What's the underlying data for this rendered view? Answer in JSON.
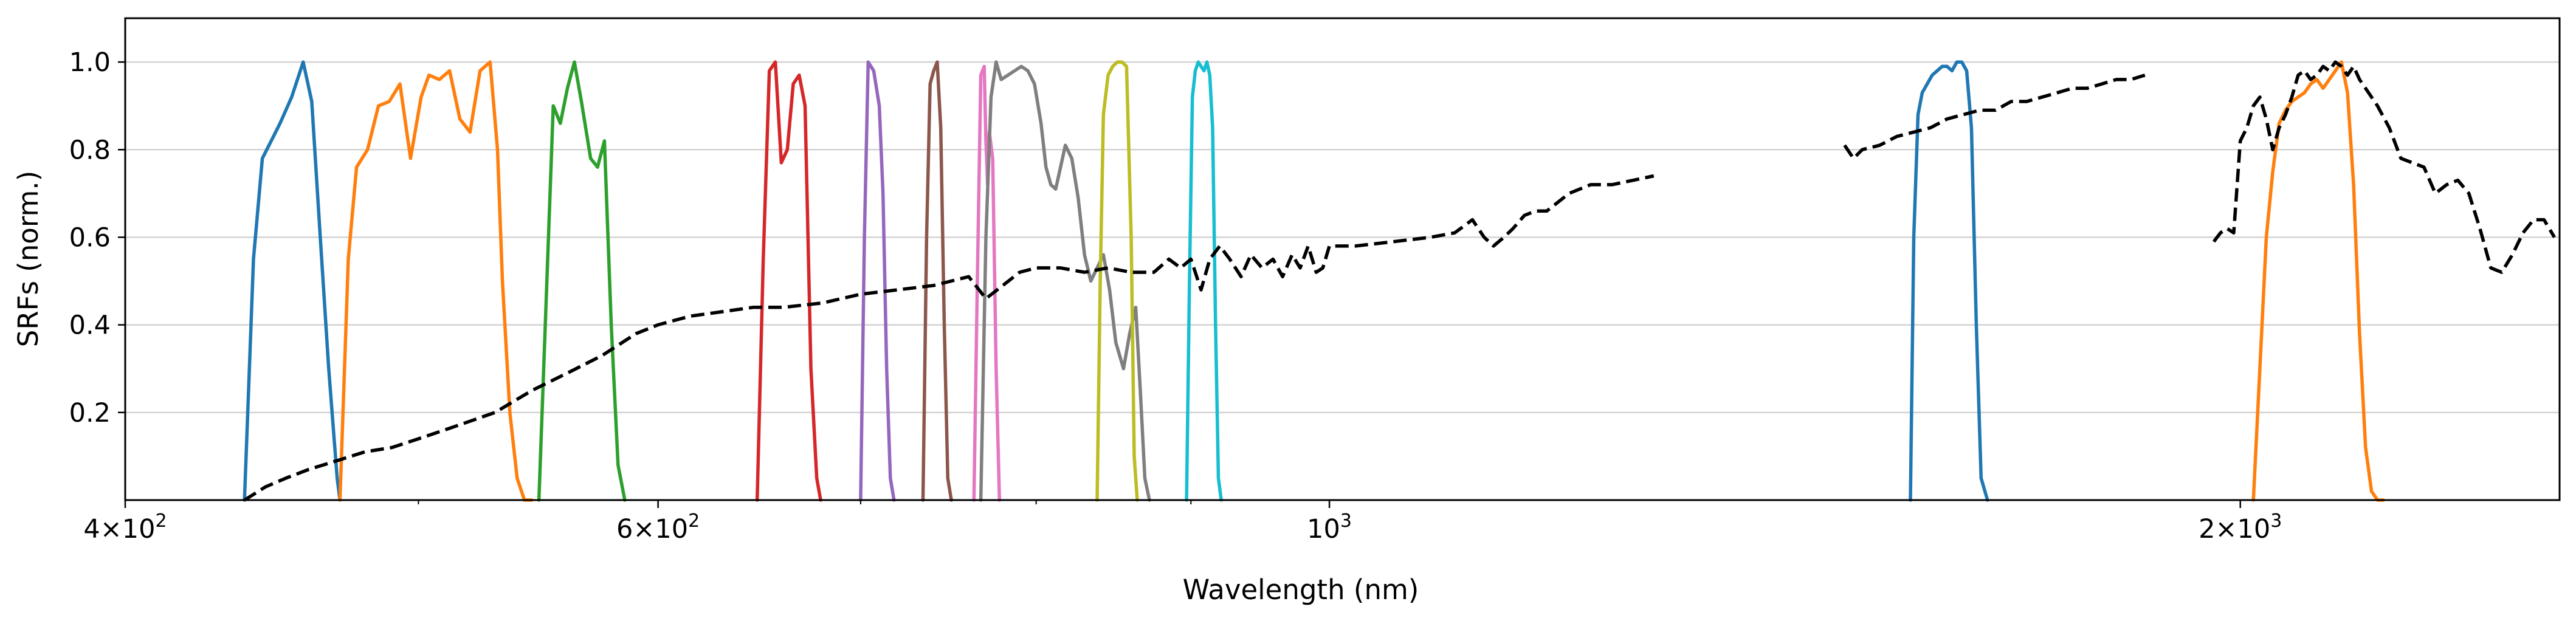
{
  "chart_data": {
    "type": "line",
    "xlabel": "Wavelength (nm)",
    "ylabel": "SRFs (norm.)",
    "x_scale": "log",
    "xlim": [
      400,
      2550
    ],
    "ylim": [
      0,
      1.1
    ],
    "grid": "y-major",
    "x_tick_labels": [
      {
        "value": 400,
        "base": "4×10",
        "exp": "2"
      },
      {
        "value": 600,
        "base": "6×10",
        "exp": "2"
      },
      {
        "value": 1000,
        "base": "10",
        "exp": "3"
      },
      {
        "value": 2000,
        "base": "2×10",
        "exp": "3"
      }
    ],
    "x_minor_ticks": [
      500,
      700,
      800,
      900,
      3000
    ],
    "y_ticks": [
      0.2,
      0.4,
      0.6,
      0.8,
      1.0
    ],
    "y_tick_labels": [
      "0.2",
      "0.4",
      "0.6",
      "0.8",
      "1.0"
    ],
    "series": [
      {
        "color": "#1f77b4",
        "dash": false,
        "x": [
          438,
          441,
          444,
          447,
          450,
          454,
          458,
          461,
          464,
          467,
          470,
          471
        ],
        "y": [
          0.0,
          0.55,
          0.78,
          0.82,
          0.86,
          0.92,
          1.0,
          0.91,
          0.6,
          0.3,
          0.05,
          0.0
        ]
      },
      {
        "color": "#ff7f0e",
        "dash": false,
        "x": [
          471,
          474,
          477,
          481,
          485,
          489,
          493,
          497,
          501,
          504,
          508,
          512,
          516,
          520,
          524,
          528,
          531,
          533,
          536,
          539,
          542,
          545
        ],
        "y": [
          0.0,
          0.55,
          0.76,
          0.8,
          0.9,
          0.91,
          0.95,
          0.78,
          0.92,
          0.97,
          0.96,
          0.98,
          0.87,
          0.84,
          0.98,
          1.0,
          0.8,
          0.5,
          0.2,
          0.05,
          0.0,
          0.0
        ]
      },
      {
        "color": "#2ca02c",
        "dash": false,
        "x": [
          548,
          551,
          554,
          557,
          560,
          563,
          566,
          570,
          573,
          576,
          579,
          582,
          585
        ],
        "y": [
          0.0,
          0.45,
          0.9,
          0.86,
          0.94,
          1.0,
          0.91,
          0.78,
          0.76,
          0.82,
          0.4,
          0.08,
          0.0
        ]
      },
      {
        "color": "#d62728",
        "dash": false,
        "x": [
          647,
          650,
          653,
          656,
          659,
          662,
          665,
          668,
          671,
          674,
          677,
          679
        ],
        "y": [
          0.0,
          0.55,
          0.98,
          1.0,
          0.77,
          0.8,
          0.95,
          0.97,
          0.9,
          0.3,
          0.05,
          0.0
        ]
      },
      {
        "color": "#9467bd",
        "dash": false,
        "x": [
          700,
          702,
          704,
          707,
          710,
          712,
          714,
          716,
          718
        ],
        "y": [
          0.0,
          0.6,
          1.0,
          0.98,
          0.9,
          0.7,
          0.3,
          0.05,
          0.0
        ]
      },
      {
        "color": "#8c564b",
        "dash": false,
        "x": [
          734,
          736,
          738,
          740,
          742,
          744,
          746,
          748,
          750
        ],
        "y": [
          0.0,
          0.6,
          0.95,
          0.98,
          1.0,
          0.85,
          0.4,
          0.05,
          0.0
        ]
      },
      {
        "color": "#e377c2",
        "dash": false,
        "x": [
          763,
          765,
          767,
          769,
          770,
          771,
          772,
          774,
          776,
          778
        ],
        "y": [
          0.0,
          0.5,
          0.97,
          0.99,
          0.82,
          0.72,
          0.84,
          0.78,
          0.3,
          0.0
        ]
      },
      {
        "color": "#7f7f7f",
        "dash": false,
        "x": [
          767,
          770,
          773,
          776,
          779,
          783,
          787,
          791,
          795,
          799,
          803,
          806,
          809,
          812,
          815,
          818,
          822,
          826,
          830,
          834,
          838,
          842,
          846,
          850,
          855,
          859,
          863,
          866,
          869,
          872
        ],
        "y": [
          0.0,
          0.6,
          0.92,
          1.0,
          0.96,
          0.97,
          0.98,
          0.99,
          0.98,
          0.95,
          0.86,
          0.76,
          0.72,
          0.71,
          0.76,
          0.81,
          0.78,
          0.69,
          0.56,
          0.5,
          0.53,
          0.56,
          0.48,
          0.36,
          0.3,
          0.38,
          0.44,
          0.25,
          0.05,
          0.0
        ]
      },
      {
        "color": "#bcbd22",
        "dash": false,
        "x": [
          838,
          840,
          842,
          845,
          848,
          851,
          854,
          857,
          860,
          862,
          864
        ],
        "y": [
          0.0,
          0.5,
          0.88,
          0.97,
          0.99,
          1.0,
          1.0,
          0.99,
          0.6,
          0.1,
          0.0
        ]
      },
      {
        "color": "#17becf",
        "dash": false,
        "x": [
          897,
          899,
          901,
          903,
          905,
          907,
          909,
          911,
          913,
          915,
          917,
          919,
          921
        ],
        "y": [
          0.0,
          0.5,
          0.92,
          0.98,
          1.0,
          0.99,
          0.98,
          1.0,
          0.97,
          0.85,
          0.4,
          0.05,
          0.0
        ]
      },
      {
        "color": "#1f77b4",
        "dash": false,
        "x": [
          1556,
          1560,
          1565,
          1570,
          1576,
          1582,
          1588,
          1594,
          1600,
          1606,
          1612,
          1618,
          1624,
          1630,
          1636,
          1642,
          1650
        ],
        "y": [
          0.0,
          0.6,
          0.88,
          0.93,
          0.95,
          0.97,
          0.98,
          0.99,
          0.99,
          0.98,
          1.0,
          1.0,
          0.98,
          0.85,
          0.4,
          0.05,
          0.0
        ]
      },
      {
        "color": "#ff7f0e",
        "dash": false,
        "x": [
          2020,
          2030,
          2040,
          2050,
          2060,
          2070,
          2080,
          2090,
          2100,
          2110,
          2120,
          2130,
          2140,
          2150,
          2160,
          2170,
          2180,
          2190,
          2200,
          2210,
          2220,
          2230
        ],
        "y": [
          0.0,
          0.3,
          0.6,
          0.75,
          0.86,
          0.89,
          0.91,
          0.92,
          0.93,
          0.95,
          0.96,
          0.94,
          0.96,
          0.98,
          1.0,
          0.93,
          0.72,
          0.38,
          0.12,
          0.02,
          0.0,
          0.0
        ]
      },
      {
        "color": "#000000",
        "dash": true,
        "x": [
          438,
          445,
          452,
          460,
          470,
          480,
          490,
          500,
          510,
          520,
          530,
          545,
          560,
          575,
          590,
          600,
          615,
          630,
          645,
          660,
          680,
          700,
          720,
          740,
          760,
          770,
          780,
          790,
          800,
          815,
          830,
          845,
          860,
          875,
          885,
          893,
          900,
          907,
          913,
          920,
          927,
          935,
          942,
          950,
          958,
          965,
          972,
          978,
          984,
          990,
          995,
          1000,
          1020,
          1050,
          1080,
          1100,
          1115,
          1125,
          1133,
          1142,
          1150,
          1160,
          1170,
          1180,
          1200,
          1220,
          1240,
          1260,
          1280
        ],
        "y": [
          0.0,
          0.03,
          0.05,
          0.07,
          0.09,
          0.11,
          0.12,
          0.14,
          0.16,
          0.18,
          0.2,
          0.25,
          0.29,
          0.33,
          0.38,
          0.4,
          0.42,
          0.43,
          0.44,
          0.44,
          0.45,
          0.47,
          0.48,
          0.49,
          0.51,
          0.46,
          0.49,
          0.52,
          0.53,
          0.53,
          0.52,
          0.53,
          0.52,
          0.52,
          0.55,
          0.53,
          0.55,
          0.48,
          0.55,
          0.58,
          0.55,
          0.51,
          0.56,
          0.53,
          0.55,
          0.51,
          0.56,
          0.53,
          0.58,
          0.52,
          0.53,
          0.58,
          0.58,
          0.59,
          0.6,
          0.61,
          0.64,
          0.6,
          0.58,
          0.6,
          0.62,
          0.65,
          0.66,
          0.66,
          0.7,
          0.72,
          0.72,
          0.73,
          0.74
        ]
      },
      {
        "color": "#000000",
        "dash": true,
        "x": [
          1480,
          1490,
          1500,
          1520,
          1540,
          1560,
          1580,
          1600,
          1620,
          1640,
          1660,
          1680,
          1700,
          1720,
          1740,
          1760,
          1780,
          1800,
          1820,
          1840,
          1860
        ],
        "y": [
          0.81,
          0.78,
          0.8,
          0.81,
          0.83,
          0.84,
          0.85,
          0.87,
          0.88,
          0.89,
          0.89,
          0.91,
          0.91,
          0.92,
          0.93,
          0.94,
          0.94,
          0.95,
          0.96,
          0.96,
          0.97
        ]
      },
      {
        "color": "#000000",
        "dash": true,
        "x": [
          1960,
          1970,
          1980,
          1990,
          2000,
          2010,
          2020,
          2030,
          2040,
          2050,
          2060,
          2070,
          2080,
          2090,
          2100,
          2110,
          2120,
          2130,
          2140,
          2150,
          2160,
          2170,
          2180,
          2190,
          2200,
          2220,
          2240,
          2260,
          2280,
          2300,
          2320,
          2340,
          2360,
          2380,
          2400,
          2420,
          2440,
          2460,
          2480,
          2500,
          2520,
          2540
        ],
        "y": [
          0.59,
          0.61,
          0.62,
          0.61,
          0.82,
          0.85,
          0.9,
          0.92,
          0.87,
          0.8,
          0.85,
          0.88,
          0.92,
          0.97,
          0.98,
          0.96,
          0.97,
          0.99,
          0.98,
          1.0,
          0.99,
          0.97,
          0.99,
          0.96,
          0.94,
          0.9,
          0.85,
          0.78,
          0.77,
          0.76,
          0.7,
          0.72,
          0.73,
          0.7,
          0.62,
          0.53,
          0.52,
          0.56,
          0.61,
          0.64,
          0.64,
          0.6
        ]
      }
    ]
  }
}
